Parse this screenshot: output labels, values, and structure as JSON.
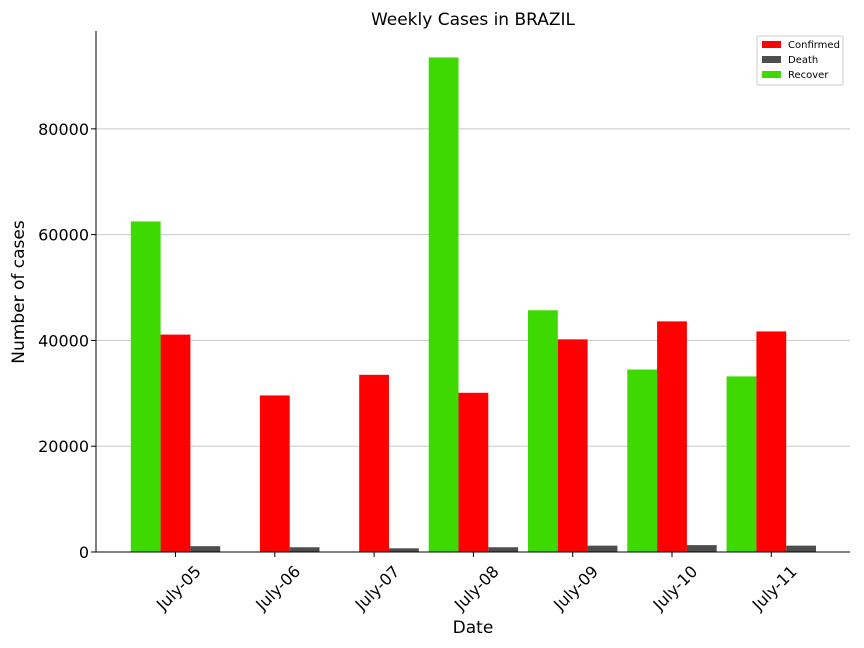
{
  "chart_data": {
    "type": "bar",
    "title": "Weekly Cases in BRAZIL",
    "xlabel": "Date",
    "ylabel": "Number of cases",
    "categories": [
      "July-05",
      "July-06",
      "July-07",
      "July-08",
      "July-09",
      "July-10",
      "July-11"
    ],
    "series": [
      {
        "name": "Recover",
        "color": "#3dd900",
        "values": [
          62500,
          0,
          0,
          93500,
          45700,
          34500,
          33200
        ]
      },
      {
        "name": "Confirmed",
        "color": "#ff0000",
        "values": [
          41100,
          29600,
          33500,
          30100,
          40200,
          43600,
          41700
        ]
      },
      {
        "name": "Death",
        "color": "#4d4d4d",
        "values": [
          1100,
          900,
          700,
          900,
          1200,
          1300,
          1200
        ]
      }
    ],
    "legend_order": [
      "Confirmed",
      "Death",
      "Recover"
    ],
    "ylim": [
      0,
      98500
    ],
    "yticks": [
      0,
      20000,
      40000,
      60000,
      80000
    ],
    "grid": "horizontal",
    "legend_position": "top-right"
  }
}
